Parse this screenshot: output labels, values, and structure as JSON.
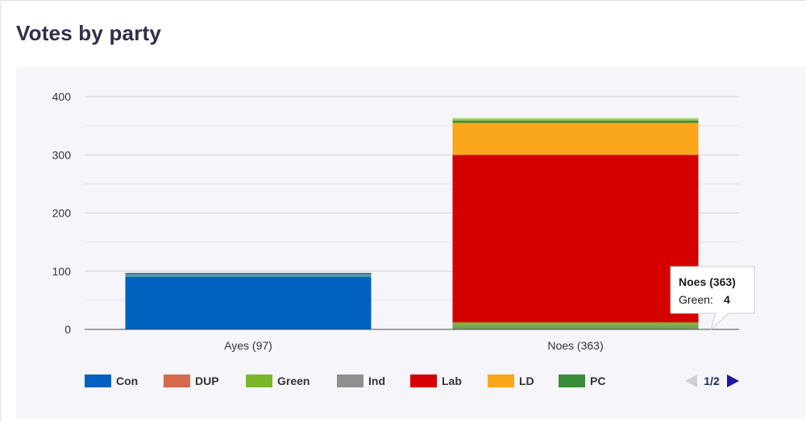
{
  "page": {
    "title": "Votes by party"
  },
  "chart_data": {
    "type": "bar",
    "stacked": true,
    "categories": [
      "Ayes (97)",
      "Noes (363)"
    ],
    "series": [
      {
        "name": "Con",
        "color": "#0061bf",
        "values": [
          90,
          0
        ]
      },
      {
        "name": "DUP",
        "color": "#d46a4c",
        "values": [
          0,
          0
        ]
      },
      {
        "name": "Green",
        "color": "#78b82a",
        "values": [
          0,
          4
        ]
      },
      {
        "name": "Ind",
        "color": "#909090",
        "values": [
          0,
          0
        ]
      },
      {
        "name": "Lab",
        "color": "#d50000",
        "values": [
          0,
          288
        ]
      },
      {
        "name": "LD",
        "color": "#faa61a",
        "values": [
          0,
          55
        ]
      },
      {
        "name": "PC",
        "color": "#3a8c3a",
        "values": [
          0,
          4
        ]
      }
    ],
    "extra_segments": [
      {
        "category_index": 0,
        "color": "#4a9cb0",
        "value": 5,
        "position": "top"
      },
      {
        "category_index": 0,
        "color": "#3a5f8a",
        "value": 2,
        "position": "top"
      },
      {
        "category_index": 1,
        "color": "#7aa05a",
        "value": 8,
        "position": "bottom"
      },
      {
        "category_index": 1,
        "color": "#a5cc5a",
        "value": 4,
        "position": "top"
      }
    ],
    "yticks": [
      0,
      100,
      200,
      300,
      400
    ],
    "ylim": [
      0,
      400
    ],
    "xlabel": "",
    "ylabel": "",
    "grid": true,
    "legend_position": "bottom",
    "legend_page": "1/2",
    "tooltip": {
      "title": "Noes (363)",
      "series": "Green:",
      "value": "4"
    }
  }
}
